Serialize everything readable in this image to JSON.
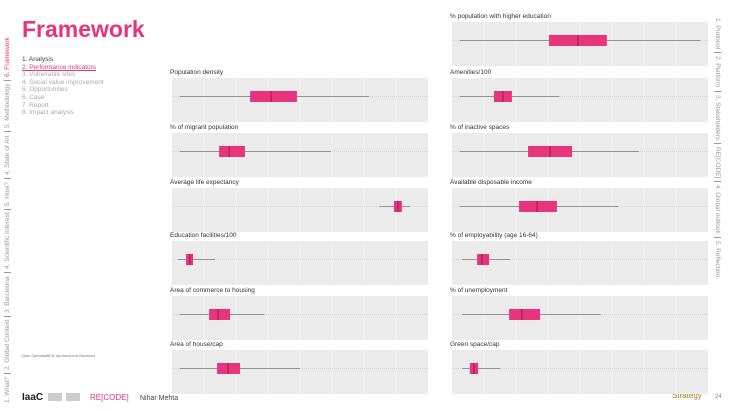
{
  "header": {
    "title": "Framework",
    "note": "Data: OpendataBCN, Ajuntament de Barcelona"
  },
  "menu": [
    "1. Analysis",
    "2. Performance indicators",
    "3. Vulnerable sites",
    "4. Social value improvement",
    "5. Opportunities",
    "6. Case",
    "7. Report",
    "8. Impact analysis"
  ],
  "left_nav": [
    "1. What?",
    "2. Global Context",
    "3. Barcelona",
    "4. Scientific Interest",
    "5. How?",
    "4. State of Art",
    "5. Methodology",
    "6. Framework"
  ],
  "right_nav": [
    "1. Protocol",
    "2. Platform",
    "3. Stakeholders",
    "RE[CODE]",
    "4. Global outlook",
    "5. Reflection"
  ],
  "footer": {
    "logo": "IaaC",
    "brand": "RE[CODE]",
    "author": "Nihar Mehta",
    "section": "Strategy",
    "page": "24"
  },
  "chart_data": [
    {
      "type": "box",
      "title": "% population with higher education",
      "xlim": [
        0,
        100
      ],
      "color": "#e8347a",
      "values": {
        "whisker_low": 3,
        "q1": 37.9,
        "median": 49.2,
        "q3": 60.5,
        "whisker_high": 97
      }
    },
    {
      "type": "box",
      "title": "Population density",
      "xlim": [
        0,
        100
      ],
      "color": "#e8347a",
      "values": {
        "whisker_low": 3,
        "q1": 30.5,
        "median": 38.7,
        "q3": 48.8,
        "whisker_high": 77
      }
    },
    {
      "type": "box",
      "title": "Amenities/100",
      "xlim": [
        0,
        100
      ],
      "color": "#e8347a",
      "values": {
        "whisker_low": 3,
        "q1": 16.4,
        "median": 19.9,
        "q3": 23.4,
        "whisker_high": 42
      }
    },
    {
      "type": "box",
      "title": "% of migrant population",
      "xlim": [
        0,
        100
      ],
      "color": "#e8347a",
      "values": {
        "whisker_low": 3,
        "q1": 18.4,
        "median": 22.3,
        "q3": 28.5,
        "whisker_high": 62
      }
    },
    {
      "type": "box",
      "title": "% of inactive spaces",
      "xlim": [
        0,
        100
      ],
      "color": "#e8347a",
      "values": {
        "whisker_low": 3,
        "q1": 29.7,
        "median": 38.3,
        "q3": 46.9,
        "whisker_high": 73
      }
    },
    {
      "type": "box",
      "title": "Average life expectancy",
      "xlim": [
        0,
        100
      ],
      "color": "#e8347a",
      "values": {
        "whisker_low": 81,
        "q1": 86.7,
        "median": 88.3,
        "q3": 89.8,
        "whisker_high": 93
      }
    },
    {
      "type": "box",
      "title": "Available disposable income",
      "xlim": [
        0,
        100
      ],
      "color": "#e8347a",
      "values": {
        "whisker_low": 3,
        "q1": 26.2,
        "median": 33.2,
        "q3": 41,
        "whisker_high": 65
      }
    },
    {
      "type": "box",
      "title": "Education facilities/100",
      "xlim": [
        0,
        100
      ],
      "color": "#e8347a",
      "values": {
        "whisker_low": 2.3,
        "q1": 5.5,
        "median": 7,
        "q3": 8.2,
        "whisker_high": 16.8
      }
    },
    {
      "type": "box",
      "title": "% of employability (age 16-64)",
      "xlim": [
        0,
        100
      ],
      "color": "#e8347a",
      "values": {
        "whisker_low": 4,
        "q1": 9.8,
        "median": 11.7,
        "q3": 14.5,
        "whisker_high": 22.6
      }
    },
    {
      "type": "box",
      "title": "Area of commerce to housing",
      "xlim": [
        0,
        100
      ],
      "color": "#e8347a",
      "values": {
        "whisker_low": 3,
        "q1": 14.5,
        "median": 18,
        "q3": 22.7,
        "whisker_high": 36
      }
    },
    {
      "type": "box",
      "title": "% of unemployment",
      "xlim": [
        0,
        100
      ],
      "color": "#e8347a",
      "values": {
        "whisker_low": 4,
        "q1": 22.3,
        "median": 27.3,
        "q3": 34.4,
        "whisker_high": 58
      }
    },
    {
      "type": "box",
      "title": "Area of house/cap",
      "xlim": [
        0,
        100
      ],
      "color": "#e8347a",
      "values": {
        "whisker_low": 3,
        "q1": 17.6,
        "median": 21.9,
        "q3": 26.6,
        "whisker_high": 50
      }
    },
    {
      "type": "box",
      "title": "Green space/cap",
      "xlim": [
        0,
        100
      ],
      "color": "#e8347a",
      "values": {
        "whisker_low": 4,
        "q1": 7,
        "median": 8.6,
        "q3": 10.2,
        "whisker_high": 18.8
      }
    }
  ]
}
